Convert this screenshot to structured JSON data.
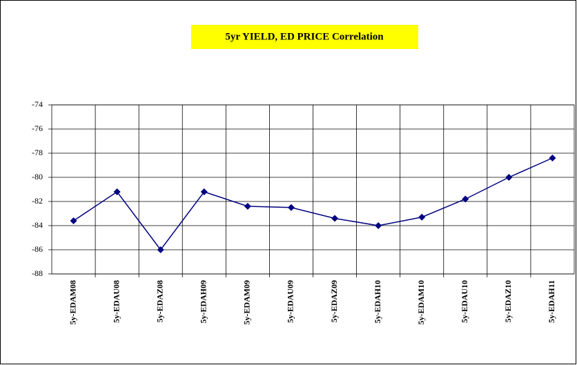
{
  "chart_data": {
    "type": "line",
    "title": "5yr YIELD, ED PRICE Correlation",
    "categories": [
      "5y-EDAM08",
      "5y-EDAU08",
      "5y-EDAZ08",
      "5y-EDAH09",
      "5y-EDAM09",
      "5y-EDAU09",
      "5y-EDAZ09",
      "5y-EDAH10",
      "5y-EDAM10",
      "5y-EDAU10",
      "5y-EDAZ10",
      "5y-EDAH11"
    ],
    "values": [
      -83.6,
      -81.2,
      -86.0,
      -81.2,
      -82.4,
      -82.5,
      -83.4,
      -84.0,
      -83.3,
      -81.8,
      -80.0,
      -78.4
    ],
    "color": "#000080",
    "ylim": [
      -88,
      -74
    ],
    "yticks": [
      -88,
      -86,
      -84,
      -82,
      -80,
      -78,
      -76,
      -74
    ],
    "grid": true
  }
}
